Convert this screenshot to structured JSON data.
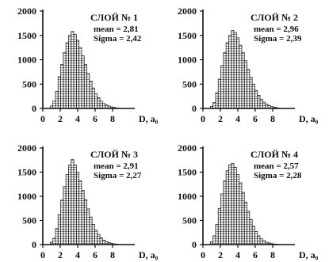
{
  "chart_data": [
    {
      "type": "bar",
      "title": "СЛОЙ № 1",
      "annotations": [
        "mean = 2,81",
        "Sigma = 2,42"
      ],
      "xlabel": "D, a₀",
      "ylabel": "",
      "x_ticks": [
        "0",
        "2",
        "4",
        "6",
        "8"
      ],
      "y_ticks": [
        "0",
        "500",
        "1000",
        "1500",
        "2000"
      ],
      "xlim": [
        0,
        10
      ],
      "ylim": [
        0,
        2000
      ],
      "categories": [
        1.0,
        1.3,
        1.6,
        1.9,
        2.2,
        2.5,
        2.8,
        3.1,
        3.4,
        3.7,
        4.0,
        4.3,
        4.6,
        4.9,
        5.2,
        5.5,
        5.8,
        6.1,
        6.4,
        6.7,
        7.0,
        7.3,
        7.6,
        7.9,
        8.2,
        8.5
      ],
      "values": [
        50,
        150,
        350,
        650,
        900,
        1150,
        1350,
        1500,
        1580,
        1520,
        1400,
        1250,
        1080,
        900,
        720,
        560,
        420,
        300,
        220,
        150,
        100,
        70,
        50,
        30,
        20,
        10
      ]
    },
    {
      "type": "bar",
      "title": "СЛОЙ № 2",
      "annotations": [
        "mean = 2,96",
        "Sigma = 2,39"
      ],
      "xlabel": "D, a₀",
      "ylabel": "",
      "x_ticks": [
        "0",
        "2",
        "4",
        "6",
        "8"
      ],
      "y_ticks": [
        "0",
        "500",
        "1000",
        "1500",
        "2000"
      ],
      "xlim": [
        0,
        10
      ],
      "ylim": [
        0,
        2000
      ],
      "categories": [
        1.0,
        1.3,
        1.6,
        1.9,
        2.2,
        2.5,
        2.8,
        3.1,
        3.4,
        3.7,
        4.0,
        4.3,
        4.6,
        4.9,
        5.2,
        5.5,
        5.8,
        6.1,
        6.4,
        6.7,
        7.0,
        7.3,
        7.6,
        7.9,
        8.2,
        8.5
      ],
      "values": [
        40,
        120,
        320,
        600,
        880,
        1150,
        1350,
        1500,
        1600,
        1560,
        1450,
        1300,
        1150,
        980,
        800,
        640,
        500,
        370,
        270,
        190,
        130,
        90,
        60,
        40,
        25,
        15
      ]
    },
    {
      "type": "bar",
      "title": "СЛОЙ № 3",
      "annotations": [
        "mean = 2,91",
        "Sigma = 2,27"
      ],
      "xlabel": "D, a₀",
      "ylabel": "",
      "x_ticks": [
        "0",
        "2",
        "4",
        "6",
        "8"
      ],
      "y_ticks": [
        "0",
        "500",
        "1000",
        "1500",
        "2000"
      ],
      "xlim": [
        0,
        10
      ],
      "ylim": [
        0,
        2000
      ],
      "categories": [
        1.0,
        1.3,
        1.6,
        1.9,
        2.2,
        2.5,
        2.8,
        3.1,
        3.4,
        3.7,
        4.0,
        4.3,
        4.6,
        4.9,
        5.2,
        5.5,
        5.8,
        6.1,
        6.4,
        6.7,
        7.0,
        7.3,
        7.6,
        7.9,
        8.2,
        8.5
      ],
      "values": [
        50,
        130,
        330,
        620,
        920,
        1200,
        1450,
        1650,
        1760,
        1650,
        1500,
        1320,
        1120,
        930,
        740,
        570,
        420,
        300,
        210,
        140,
        90,
        60,
        40,
        25,
        15,
        10
      ]
    },
    {
      "type": "bar",
      "title": "СЛОЙ № 4",
      "annotations": [
        "mean = 2,57",
        "Sigma = 2,28"
      ],
      "xlabel": "D, a₀",
      "ylabel": "",
      "x_ticks": [
        "0",
        "2",
        "4",
        "6",
        "8"
      ],
      "y_ticks": [
        "0",
        "500",
        "1000",
        "1500",
        "2000"
      ],
      "xlim": [
        0,
        10
      ],
      "ylim": [
        0,
        2000
      ],
      "categories": [
        1.0,
        1.3,
        1.6,
        1.9,
        2.2,
        2.5,
        2.8,
        3.1,
        3.4,
        3.7,
        4.0,
        4.3,
        4.6,
        4.9,
        5.2,
        5.5,
        5.8,
        6.1,
        6.4,
        6.7,
        7.0,
        7.3,
        7.6,
        7.9,
        8.2,
        8.5
      ],
      "values": [
        60,
        180,
        420,
        750,
        1050,
        1320,
        1530,
        1650,
        1680,
        1600,
        1450,
        1280,
        1080,
        880,
        690,
        520,
        380,
        270,
        180,
        120,
        80,
        50,
        35,
        20,
        12,
        8
      ]
    }
  ]
}
